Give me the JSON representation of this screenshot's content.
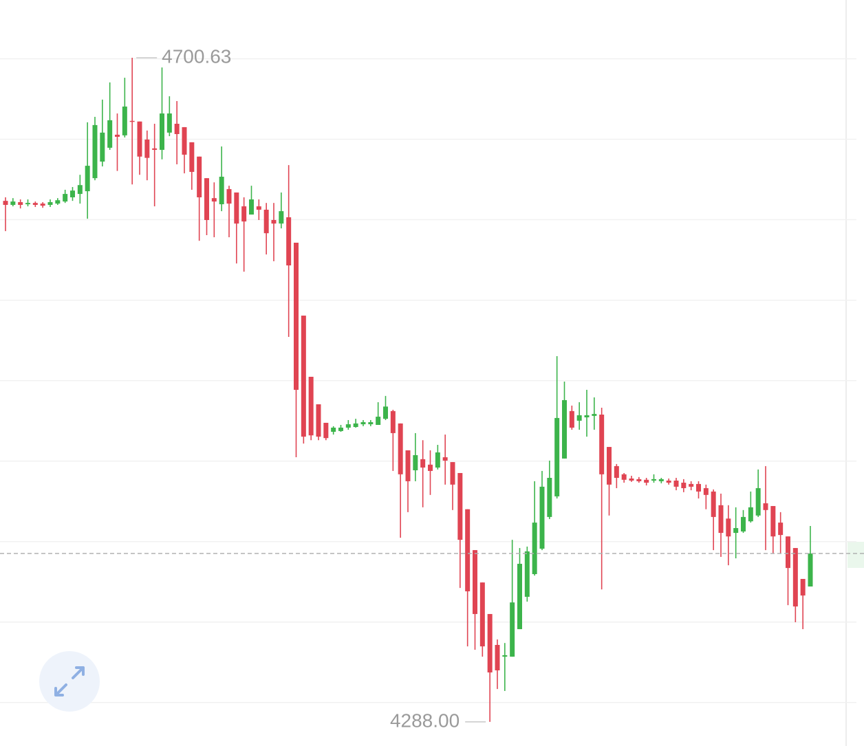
{
  "chart_data": {
    "type": "candlestick",
    "up_color": "#3cb44b",
    "down_color": "#e04452",
    "grid": true,
    "ylim": [
      4273,
      4736.5
    ],
    "yticks": [
      4300,
      4350,
      4400,
      4450,
      4500,
      4550,
      4600,
      4650,
      4700
    ],
    "max_label": 4700.63,
    "min_label": {
      "value": 4288,
      "label": "4288.00"
    },
    "open": [
      4611.7,
      4609.2,
      4610.9,
      4609.6,
      4610.4,
      4610.0,
      4609.2,
      4610.0,
      4611.3,
      4613.9,
      4616.0,
      4617.7,
      4625.8,
      4636.1,
      4644.7,
      4652.8,
      4652.4,
      4661.4,
      4661.0,
      4649.8,
      4644.3,
      4643.4,
      4654.1,
      4659.6,
      4657.5,
      4648.1,
      4639.2,
      4625.8,
      4613.4,
      4609.6,
      4619.0,
      4616.9,
      4608.3,
      4603.2,
      4608.3,
      4606.2,
      4599.8,
      4597.6,
      4601.5,
      4585.7,
      4540.4,
      4502.4,
      4485.3,
      4473.8,
      4468.2,
      4468.7,
      4470.8,
      4471.2,
      4472.9,
      4472.9,
      4472.5,
      4476.3,
      4481.1,
      4473.4,
      4456.7,
      4444.3,
      4451.2,
      4447.8,
      4446.0,
      4452.4,
      4449.4,
      4442.6,
      4420.1,
      4394.7,
      4374.6,
      4355.0,
      4335.8,
      4328.5,
      4328.5,
      4345.6,
      4365.7,
      4379.8,
      4395.6,
      4415.3,
      4428.1,
      4451.6,
      4481.1,
      4475.1,
      4477.2,
      4478.1,
      4478.9,
      4458.8,
      4446.9,
      4441.8,
      4439.2,
      4438.8,
      4438.4,
      4437.9,
      4437.5,
      4437.9,
      4437.9,
      4436.6,
      4435.8,
      4435.8,
      4433.2,
      4431.1,
      4422.6,
      4414.3,
      4405.4,
      4406.3,
      4412.6,
      4416.2,
      4423.8,
      4422.1,
      4411.8,
      4403.2,
      4396.0,
      4376.8,
      4372.1
    ],
    "high": [
      4613.9,
      4613.4,
      4612.6,
      4612.6,
      4611.3,
      4610.9,
      4612.6,
      4613.4,
      4618.6,
      4620.3,
      4627.9,
      4660.5,
      4663.9,
      4674.6,
      4685.3,
      4666.0,
      4688.2,
      4700.63,
      4661.0,
      4655.4,
      4659.6,
      4694.6,
      4676.7,
      4673.7,
      4657.5,
      4648.1,
      4639.2,
      4625.8,
      4623.2,
      4645.5,
      4621.1,
      4616.9,
      4613.9,
      4621.1,
      4612.6,
      4610.4,
      4610.4,
      4616.9,
      4633.9,
      4585.7,
      4540.4,
      4502.4,
      4485.3,
      4473.8,
      4471.7,
      4472.5,
      4475.5,
      4476.3,
      4475.5,
      4475.5,
      4486.6,
      4490.5,
      4481.9,
      4473.4,
      4456.7,
      4467.4,
      4463.0,
      4456.7,
      4460.1,
      4466.5,
      4449.4,
      4442.6,
      4420.1,
      4394.7,
      4374.6,
      4355.0,
      4339.2,
      4337.0,
      4401.1,
      4396.0,
      4396.9,
      4437.5,
      4443.9,
      4450.3,
      4515.2,
      4499.4,
      4484.5,
      4486.6,
      4494.3,
      4489.6,
      4483.2,
      4458.8,
      4448.2,
      4442.6,
      4440.9,
      4440.1,
      4439.6,
      4441.8,
      4439.6,
      4439.2,
      4439.6,
      4438.8,
      4437.5,
      4437.5,
      4435.4,
      4432.4,
      4429.8,
      4422.6,
      4421.3,
      4419.6,
      4431.1,
      4444.8,
      4446.9,
      4422.1,
      4418.3,
      4403.2,
      4396.0,
      4376.8,
      4409.7
    ],
    "low": [
      4592.9,
      4608.3,
      4607.0,
      4608.3,
      4607.9,
      4607.4,
      4607.9,
      4609.2,
      4610.4,
      4611.7,
      4610.0,
      4600.6,
      4624.5,
      4633.1,
      4643.4,
      4630.3,
      4651.1,
      4621.9,
      4627.9,
      4624.5,
      4608.3,
      4637.5,
      4651.9,
      4634.4,
      4628.8,
      4618.6,
      4586.9,
      4590.4,
      4589.1,
      4605.3,
      4589.1,
      4572.8,
      4567.7,
      4603.2,
      4599.8,
      4578.4,
      4574.2,
      4594.6,
      4527.2,
      4452.4,
      4460.9,
      4463.0,
      4463.0,
      4463.0,
      4466.5,
      4468.2,
      4469.5,
      4470.8,
      4471.7,
      4471.7,
      4472.5,
      4475.5,
      4443.9,
      4402.4,
      4418.3,
      4437.5,
      4421.3,
      4429.0,
      4444.8,
      4435.4,
      4419.6,
      4371.2,
      4334.9,
      4332.8,
      4328.5,
      4288.0,
      4308.4,
      4307.2,
      4328.5,
      4345.6,
      4362.7,
      4378.9,
      4394.7,
      4414.0,
      4426.8,
      4451.6,
      4469.5,
      4469.5,
      4465.2,
      4469.5,
      4370.3,
      4416.2,
      4433.2,
      4436.6,
      4437.1,
      4436.6,
      4434.9,
      4436.6,
      4436.2,
      4435.4,
      4431.9,
      4430.7,
      4431.9,
      4426.8,
      4420.1,
      4394.7,
      4390.5,
      4385.3,
      4389.6,
      4405.4,
      4411.8,
      4415.3,
      4394.7,
      4392.6,
      4392.6,
      4360.5,
      4349.9,
      4345.6,
      4372.1
    ],
    "close": [
      4609.2,
      4611.3,
      4609.2,
      4610.4,
      4609.2,
      4608.7,
      4610.9,
      4612.1,
      4616.0,
      4618.1,
      4621.5,
      4633.5,
      4658.8,
      4654.1,
      4661.8,
      4651.5,
      4670.3,
      4661.0,
      4639.2,
      4638.4,
      4643.4,
      4666.0,
      4666.0,
      4653.2,
      4640.4,
      4629.7,
      4613.9,
      4599.8,
      4611.3,
      4626.7,
      4610.0,
      4597.6,
      4598.9,
      4612.6,
      4606.2,
      4591.6,
      4597.6,
      4605.3,
      4571.6,
      4494.3,
      4465.2,
      4466.0,
      4465.2,
      4464.3,
      4470.8,
      4470.8,
      4472.9,
      4473.4,
      4474.2,
      4474.2,
      4477.6,
      4483.9,
      4467.4,
      4441.8,
      4437.5,
      4453.7,
      4446.0,
      4443.9,
      4455.4,
      4450.3,
      4435.4,
      4401.1,
      4369.1,
      4355.0,
      4334.9,
      4318.7,
      4320.0,
      4329.4,
      4362.2,
      4386.2,
      4393.9,
      4411.8,
      4434.1,
      4439.6,
      4476.8,
      4487.9,
      4470.8,
      4478.5,
      4478.5,
      4479.3,
      4441.8,
      4435.4,
      4439.6,
      4438.4,
      4437.9,
      4437.5,
      4436.6,
      4438.8,
      4438.8,
      4436.6,
      4434.1,
      4433.2,
      4434.1,
      4431.1,
      4429.0,
      4415.3,
      4405.4,
      4403.2,
      4408.4,
      4415.3,
      4421.3,
      4433.2,
      4419.6,
      4403.2,
      4404.1,
      4383.6,
      4359.7,
      4366.5,
      4392.6
    ]
  }
}
